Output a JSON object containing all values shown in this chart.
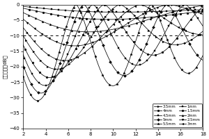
{
  "ylabel": "反射損耗（dB）",
  "xlim": [
    2,
    18
  ],
  "ylim": [
    -40,
    0
  ],
  "xticks": [
    2,
    4,
    6,
    8,
    10,
    12,
    14,
    16,
    18
  ],
  "yticks": [
    -40,
    -35,
    -30,
    -25,
    -20,
    -15,
    -10,
    -5,
    0
  ],
  "dashed_line_y": -10,
  "freq_start": 2,
  "freq_end": 18,
  "freq_points": 500,
  "background_color": "#ffffff",
  "line_color": "#000000",
  "thicknesses": [
    1.0,
    1.5,
    2.0,
    2.5,
    3.0,
    3.5,
    4.0,
    4.5,
    5.0,
    5.5
  ],
  "curve_params": {
    "1.0": {
      "f_res": 18.0,
      "amp": 8.0,
      "decay": 0.1
    },
    "1.5": {
      "f_res": 13.0,
      "amp": 10.0,
      "decay": 0.08
    },
    "2.0": {
      "f_res": 9.5,
      "amp": 14.0,
      "decay": 0.07
    },
    "2.5": {
      "f_res": 7.5,
      "amp": 18.0,
      "decay": 0.06
    },
    "3.0": {
      "f_res": 6.2,
      "amp": 22.0,
      "decay": 0.05
    },
    "3.5": {
      "f_res": 5.3,
      "amp": 24.0,
      "decay": 0.045
    },
    "4.0": {
      "f_res": 4.6,
      "amp": 26.0,
      "decay": 0.04
    },
    "4.5": {
      "f_res": 4.1,
      "amp": 28.0,
      "decay": 0.035
    },
    "5.0": {
      "f_res": 3.7,
      "amp": 30.0,
      "decay": 0.03
    },
    "5.5": {
      "f_res": 3.35,
      "amp": 32.0,
      "decay": 0.025
    }
  },
  "marker_styles": {
    "1.0": {
      "marker": "s",
      "size": 2.0
    },
    "1.5": {
      "marker": "o",
      "size": 2.0
    },
    "2.0": {
      "marker": "^",
      "size": 2.0
    },
    "2.5": {
      "marker": "v",
      "size": 2.0
    },
    "3.0": {
      "marker": "<",
      "size": 2.0
    },
    "3.5": {
      "marker": ">",
      "size": 2.0
    },
    "4.0": {
      "marker": "o",
      "size": 2.0
    },
    "4.5": {
      "marker": "s",
      "size": 2.0
    },
    "5.0": {
      "marker": "D",
      "size": 2.0
    },
    "5.5": {
      "marker": "*",
      "size": 2.5
    }
  },
  "legend_col1": [
    "3.5mm",
    "4mm",
    "4.5mm",
    "5mm",
    "5.5mm"
  ],
  "legend_col2": [
    "1mm",
    "1.5mm",
    "2mm",
    "2.5mm",
    "3mm"
  ]
}
